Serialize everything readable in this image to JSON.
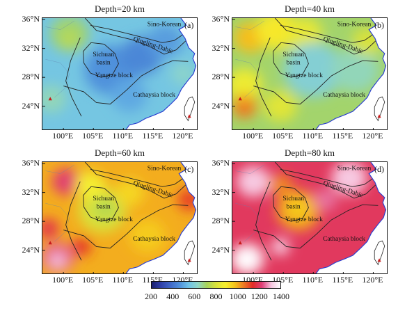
{
  "colors": {
    "scale": [
      "#1a1f6e",
      "#2f3fa8",
      "#3f66c6",
      "#4f8fdb",
      "#6fc2e8",
      "#8fd6c8",
      "#a7d35a",
      "#d9e23a",
      "#f6ef2f",
      "#f5c61c",
      "#ee7a22",
      "#e42b27",
      "#e0407a",
      "#f6c5df",
      "#ffffff"
    ],
    "coast": "#2a3fd0",
    "outline": "#222222",
    "marker": "#c71a1a"
  },
  "colorbar": {
    "ticks": [
      "200",
      "400",
      "600",
      "800",
      "1000",
      "1200",
      "1400"
    ]
  },
  "axes": {
    "lat_labels": [
      "36°N",
      "32°N",
      "28°N",
      "24°N"
    ],
    "lon_labels": [
      "100°E",
      "105°E",
      "110°E",
      "115°E",
      "120°E"
    ]
  },
  "panels": [
    {
      "title": "Depth=20 km",
      "letter": "(a)",
      "labels": {
        "sino_korean": "Sino-Korean",
        "qinling_dabie": "Qingling-Dabie",
        "sichuan": "Sichuan",
        "basin": "basin",
        "yangtze": "Yangtze block",
        "cathaysia": "Cathaysia block"
      },
      "background_value": 560,
      "anomalies": [
        {
          "value": 700,
          "lon": 101,
          "lat": 34,
          "r": 3.2
        },
        {
          "value": 760,
          "lon": 101,
          "lat": 33.2,
          "r": 1.2
        },
        {
          "value": 460,
          "lon": 108,
          "lat": 29,
          "r": 4.5
        },
        {
          "value": 440,
          "lon": 113,
          "lat": 31,
          "r": 3.5
        },
        {
          "value": 480,
          "lon": 117,
          "lat": 33,
          "r": 3.0
        },
        {
          "value": 500,
          "lon": 111,
          "lat": 25.5,
          "r": 3.0
        },
        {
          "value": 640,
          "lon": 98,
          "lat": 25,
          "r": 2.5
        },
        {
          "value": 620,
          "lon": 120,
          "lat": 28.5,
          "r": 2.0
        }
      ]
    },
    {
      "title": "Depth=40 km",
      "letter": "(b)",
      "labels": {
        "sino_korean": "Sino-Korean",
        "qinling_dabie": "Qingling-Dabie",
        "sichuan": "Sichuan",
        "basin": "basin",
        "yangtze": "Yangtze block",
        "cathaysia": "Cathaysia block"
      },
      "background_value": 700,
      "anomalies": [
        {
          "value": 980,
          "lon": 99.5,
          "lat": 33.5,
          "r": 2.8
        },
        {
          "value": 900,
          "lon": 104,
          "lat": 34.5,
          "r": 3.5
        },
        {
          "value": 860,
          "lon": 98.5,
          "lat": 27,
          "r": 3.0
        },
        {
          "value": 1020,
          "lon": 98.5,
          "lat": 24,
          "r": 2.2
        },
        {
          "value": 1080,
          "lon": 98.5,
          "lat": 23.5,
          "r": 1.2
        },
        {
          "value": 840,
          "lon": 108.5,
          "lat": 34,
          "r": 3.0
        },
        {
          "value": 600,
          "lon": 110,
          "lat": 29,
          "r": 5.0
        },
        {
          "value": 640,
          "lon": 117,
          "lat": 29,
          "r": 4.0
        },
        {
          "value": 820,
          "lon": 104.5,
          "lat": 24,
          "r": 2.8
        },
        {
          "value": 800,
          "lon": 119,
          "lat": 33,
          "r": 2.5
        }
      ]
    },
    {
      "title": "Depth=60 km",
      "letter": "(c)",
      "labels": {
        "sino_korean": "Sino-Korean",
        "qinling_dabie": "Qingling-Dabie",
        "sichuan": "Sichuan",
        "basin": "basin",
        "yangtze": "Yangtze block",
        "cathaysia": "Cathaysia block"
      },
      "background_value": 1000,
      "anomalies": [
        {
          "value": 1220,
          "lon": 100.5,
          "lat": 33.5,
          "r": 2.4
        },
        {
          "value": 1250,
          "lon": 99,
          "lat": 23,
          "r": 2.8
        },
        {
          "value": 1320,
          "lon": 99,
          "lat": 22.5,
          "r": 1.3
        },
        {
          "value": 1180,
          "lon": 97.5,
          "lat": 27,
          "r": 1.8
        },
        {
          "value": 800,
          "lon": 106.5,
          "lat": 29.5,
          "r": 4.0
        },
        {
          "value": 740,
          "lon": 107,
          "lat": 29.8,
          "r": 2.0
        },
        {
          "value": 880,
          "lon": 104.5,
          "lat": 33,
          "r": 2.5
        },
        {
          "value": 940,
          "lon": 111,
          "lat": 32,
          "r": 2.5
        },
        {
          "value": 960,
          "lon": 114,
          "lat": 26,
          "r": 3.0
        },
        {
          "value": 1120,
          "lon": 121,
          "lat": 31,
          "r": 2.0
        },
        {
          "value": 1140,
          "lon": 103,
          "lat": 24.5,
          "r": 1.6
        }
      ]
    },
    {
      "title": "Depth=80 km",
      "letter": "(d)",
      "labels": {
        "sino_korean": "Sino-Korean",
        "qinling_dabie": "Qingling-Dabie",
        "sichuan": "Sichuan",
        "basin": "basin",
        "yangtze": "Yangtze block",
        "cathaysia": "Cathaysia block"
      },
      "background_value": 1200,
      "anomalies": [
        {
          "value": 1320,
          "lon": 100,
          "lat": 33.5,
          "r": 2.8
        },
        {
          "value": 1320,
          "lon": 116,
          "lat": 34,
          "r": 3.0
        },
        {
          "value": 1380,
          "lon": 99,
          "lat": 22.8,
          "r": 2.8
        },
        {
          "value": 1420,
          "lon": 98.5,
          "lat": 22.3,
          "r": 1.5
        },
        {
          "value": 1000,
          "lon": 107.5,
          "lat": 29.5,
          "r": 3.6
        },
        {
          "value": 960,
          "lon": 107.5,
          "lat": 29.8,
          "r": 1.8
        },
        {
          "value": 1040,
          "lon": 104.5,
          "lat": 33,
          "r": 2.0
        },
        {
          "value": 1260,
          "lon": 112,
          "lat": 31,
          "r": 2.0
        },
        {
          "value": 1340,
          "lon": 104.5,
          "lat": 24.5,
          "r": 1.5
        }
      ]
    }
  ]
}
